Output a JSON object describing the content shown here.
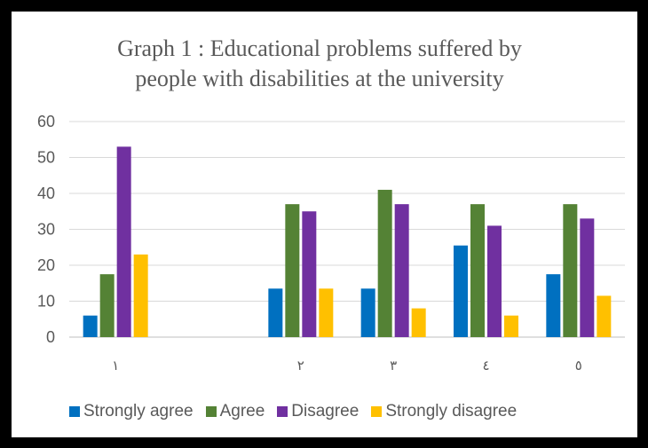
{
  "chart_data": {
    "type": "bar",
    "title_lines": [
      "Graph 1 : Educational problems suffered by",
      "people with disabilities at the university"
    ],
    "categories": [
      "١",
      "",
      "٢",
      "٣",
      "٤",
      "٥"
    ],
    "ylim": [
      0,
      60
    ],
    "yticks": [
      0,
      10,
      20,
      30,
      40,
      50,
      60
    ],
    "grid": true,
    "legend_position": "bottom",
    "series": [
      {
        "name": "Strongly agree",
        "color": "#0070C0",
        "values": [
          6,
          null,
          13.5,
          13.5,
          25.5,
          17.5
        ]
      },
      {
        "name": "Agree",
        "color": "#548235",
        "values": [
          17.5,
          null,
          37,
          41,
          37,
          37
        ]
      },
      {
        "name": "Disagree",
        "color": "#7030A0",
        "values": [
          53,
          null,
          35,
          37,
          31,
          33
        ]
      },
      {
        "name": "Strongly disagree",
        "color": "#FFC000",
        "values": [
          23,
          null,
          13.5,
          8,
          6,
          11.5
        ]
      }
    ]
  }
}
